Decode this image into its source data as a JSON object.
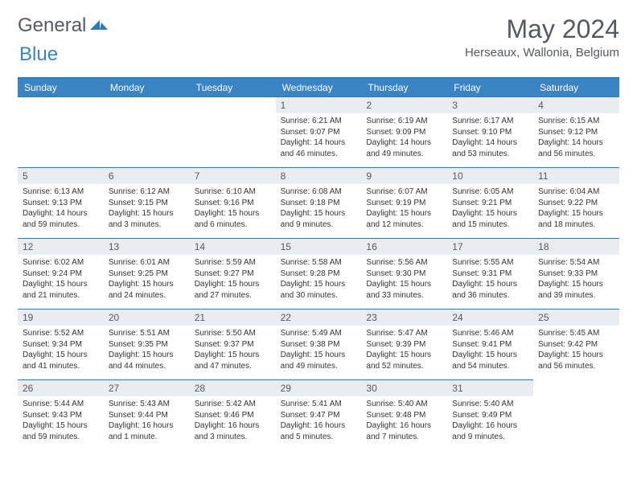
{
  "logo": {
    "text1": "General",
    "text2": "Blue"
  },
  "title": "May 2024",
  "location": "Herseaux, Wallonia, Belgium",
  "colors": {
    "header_bg": "#3a84c4",
    "header_border": "#2f79b8",
    "daynum_bg": "#e9edf1",
    "text_muted": "#555a5e"
  },
  "weekday_labels": [
    "Sunday",
    "Monday",
    "Tuesday",
    "Wednesday",
    "Thursday",
    "Friday",
    "Saturday"
  ],
  "leading_empty": 3,
  "days": [
    {
      "n": 1,
      "sunrise": "6:21 AM",
      "sunset": "9:07 PM",
      "daylight": "14 hours and 46 minutes."
    },
    {
      "n": 2,
      "sunrise": "6:19 AM",
      "sunset": "9:09 PM",
      "daylight": "14 hours and 49 minutes."
    },
    {
      "n": 3,
      "sunrise": "6:17 AM",
      "sunset": "9:10 PM",
      "daylight": "14 hours and 53 minutes."
    },
    {
      "n": 4,
      "sunrise": "6:15 AM",
      "sunset": "9:12 PM",
      "daylight": "14 hours and 56 minutes."
    },
    {
      "n": 5,
      "sunrise": "6:13 AM",
      "sunset": "9:13 PM",
      "daylight": "14 hours and 59 minutes."
    },
    {
      "n": 6,
      "sunrise": "6:12 AM",
      "sunset": "9:15 PM",
      "daylight": "15 hours and 3 minutes."
    },
    {
      "n": 7,
      "sunrise": "6:10 AM",
      "sunset": "9:16 PM",
      "daylight": "15 hours and 6 minutes."
    },
    {
      "n": 8,
      "sunrise": "6:08 AM",
      "sunset": "9:18 PM",
      "daylight": "15 hours and 9 minutes."
    },
    {
      "n": 9,
      "sunrise": "6:07 AM",
      "sunset": "9:19 PM",
      "daylight": "15 hours and 12 minutes."
    },
    {
      "n": 10,
      "sunrise": "6:05 AM",
      "sunset": "9:21 PM",
      "daylight": "15 hours and 15 minutes."
    },
    {
      "n": 11,
      "sunrise": "6:04 AM",
      "sunset": "9:22 PM",
      "daylight": "15 hours and 18 minutes."
    },
    {
      "n": 12,
      "sunrise": "6:02 AM",
      "sunset": "9:24 PM",
      "daylight": "15 hours and 21 minutes."
    },
    {
      "n": 13,
      "sunrise": "6:01 AM",
      "sunset": "9:25 PM",
      "daylight": "15 hours and 24 minutes."
    },
    {
      "n": 14,
      "sunrise": "5:59 AM",
      "sunset": "9:27 PM",
      "daylight": "15 hours and 27 minutes."
    },
    {
      "n": 15,
      "sunrise": "5:58 AM",
      "sunset": "9:28 PM",
      "daylight": "15 hours and 30 minutes."
    },
    {
      "n": 16,
      "sunrise": "5:56 AM",
      "sunset": "9:30 PM",
      "daylight": "15 hours and 33 minutes."
    },
    {
      "n": 17,
      "sunrise": "5:55 AM",
      "sunset": "9:31 PM",
      "daylight": "15 hours and 36 minutes."
    },
    {
      "n": 18,
      "sunrise": "5:54 AM",
      "sunset": "9:33 PM",
      "daylight": "15 hours and 39 minutes."
    },
    {
      "n": 19,
      "sunrise": "5:52 AM",
      "sunset": "9:34 PM",
      "daylight": "15 hours and 41 minutes."
    },
    {
      "n": 20,
      "sunrise": "5:51 AM",
      "sunset": "9:35 PM",
      "daylight": "15 hours and 44 minutes."
    },
    {
      "n": 21,
      "sunrise": "5:50 AM",
      "sunset": "9:37 PM",
      "daylight": "15 hours and 47 minutes."
    },
    {
      "n": 22,
      "sunrise": "5:49 AM",
      "sunset": "9:38 PM",
      "daylight": "15 hours and 49 minutes."
    },
    {
      "n": 23,
      "sunrise": "5:47 AM",
      "sunset": "9:39 PM",
      "daylight": "15 hours and 52 minutes."
    },
    {
      "n": 24,
      "sunrise": "5:46 AM",
      "sunset": "9:41 PM",
      "daylight": "15 hours and 54 minutes."
    },
    {
      "n": 25,
      "sunrise": "5:45 AM",
      "sunset": "9:42 PM",
      "daylight": "15 hours and 56 minutes."
    },
    {
      "n": 26,
      "sunrise": "5:44 AM",
      "sunset": "9:43 PM",
      "daylight": "15 hours and 59 minutes."
    },
    {
      "n": 27,
      "sunrise": "5:43 AM",
      "sunset": "9:44 PM",
      "daylight": "16 hours and 1 minute."
    },
    {
      "n": 28,
      "sunrise": "5:42 AM",
      "sunset": "9:46 PM",
      "daylight": "16 hours and 3 minutes."
    },
    {
      "n": 29,
      "sunrise": "5:41 AM",
      "sunset": "9:47 PM",
      "daylight": "16 hours and 5 minutes."
    },
    {
      "n": 30,
      "sunrise": "5:40 AM",
      "sunset": "9:48 PM",
      "daylight": "16 hours and 7 minutes."
    },
    {
      "n": 31,
      "sunrise": "5:40 AM",
      "sunset": "9:49 PM",
      "daylight": "16 hours and 9 minutes."
    }
  ],
  "labels": {
    "sunrise": "Sunrise:",
    "sunset": "Sunset:",
    "daylight": "Daylight:"
  }
}
